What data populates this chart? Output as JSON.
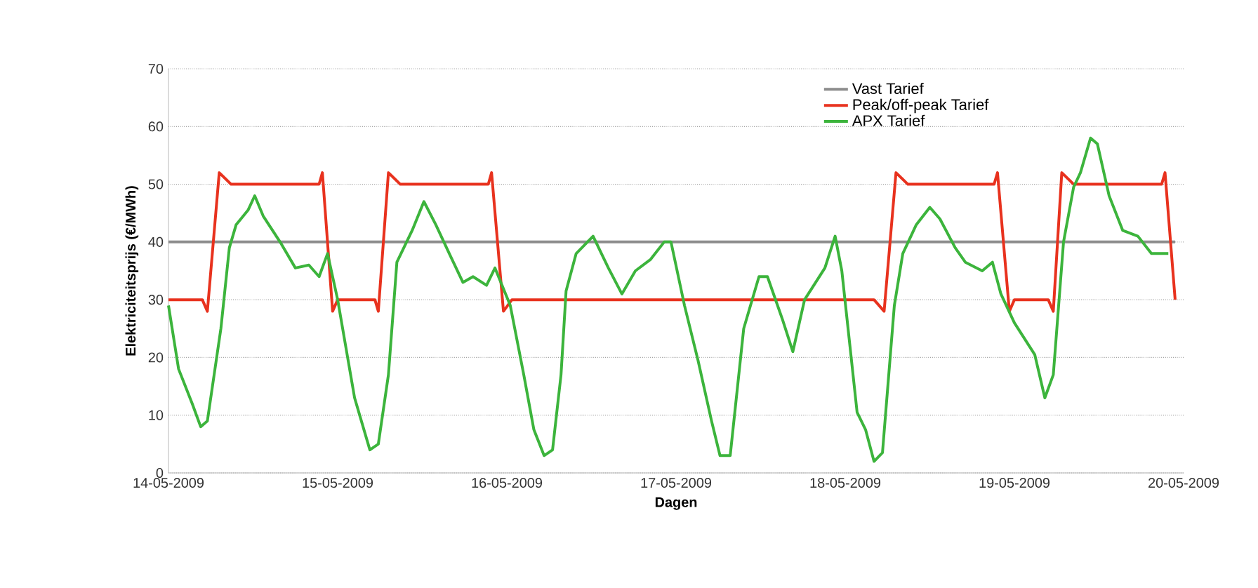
{
  "chart_data": {
    "type": "line",
    "xlabel": "Dagen",
    "ylabel": "Elektriciteitsprijs (€/MWh)",
    "xlim": [
      "2009-05-14",
      "2009-05-20"
    ],
    "ylim": [
      0,
      70
    ],
    "xticks": [
      {
        "value": "2009-05-14",
        "label": "14-05-2009"
      },
      {
        "value": "2009-05-15",
        "label": "15-05-2009"
      },
      {
        "value": "2009-05-16",
        "label": "16-05-2009"
      },
      {
        "value": "2009-05-17",
        "label": "17-05-2009"
      },
      {
        "value": "2009-05-18",
        "label": "18-05-2009"
      },
      {
        "value": "2009-05-19",
        "label": "19-05-2009"
      },
      {
        "value": "2009-05-20",
        "label": "20-05-2009"
      }
    ],
    "yticks": [
      0,
      10,
      20,
      30,
      40,
      50,
      60,
      70
    ],
    "grid": "y",
    "legend": "top right",
    "series": [
      {
        "name": "Vast Tarief",
        "color": "#8c8c8c",
        "x": [
          "2009-05-14T00:00",
          "2009-05-19T22:48"
        ],
        "values": [
          40,
          40
        ]
      },
      {
        "name": "Peak/off-peak Tarief",
        "color": "#e8321e",
        "x": [
          "2009-05-14T00:00",
          "2009-05-14T04:48",
          "2009-05-14T05:31",
          "2009-05-14T07:12",
          "2009-05-14T08:53",
          "2009-05-14T21:22",
          "2009-05-14T21:50",
          "2009-05-14T23:17",
          "2009-05-15T00:00",
          "2009-05-15T05:17",
          "2009-05-15T05:46",
          "2009-05-15T07:12",
          "2009-05-15T08:53",
          "2009-05-15T21:22",
          "2009-05-15T21:50",
          "2009-05-15T23:31",
          "2009-05-16T00:43",
          "2009-05-18T04:05",
          "2009-05-18T05:31",
          "2009-05-18T07:12",
          "2009-05-18T08:53",
          "2009-05-18T21:07",
          "2009-05-18T21:36",
          "2009-05-18T23:17",
          "2009-05-19T00:00",
          "2009-05-19T04:48",
          "2009-05-19T05:31",
          "2009-05-19T06:43",
          "2009-05-19T08:24",
          "2009-05-19T20:53",
          "2009-05-19T21:22",
          "2009-05-19T22:48"
        ],
        "values": [
          30,
          30,
          28,
          52,
          50,
          50,
          52,
          28,
          30,
          30,
          28,
          52,
          50,
          50,
          52,
          28,
          30,
          30,
          28,
          52,
          50,
          50,
          52,
          28,
          30,
          30,
          28,
          52,
          50,
          50,
          52,
          30
        ]
      },
      {
        "name": "APX Tarief",
        "color": "#3cb43c",
        "x": [
          "2009-05-14T00:00",
          "2009-05-14T01:26",
          "2009-05-14T03:22",
          "2009-05-14T04:34",
          "2009-05-14T05:31",
          "2009-05-14T07:26",
          "2009-05-14T08:38",
          "2009-05-14T09:36",
          "2009-05-14T11:17",
          "2009-05-14T12:14",
          "2009-05-14T13:26",
          "2009-05-14T15:50",
          "2009-05-14T18:00",
          "2009-05-14T19:55",
          "2009-05-14T21:22",
          "2009-05-14T22:34",
          "2009-05-15T00:00",
          "2009-05-15T02:24",
          "2009-05-15T04:34",
          "2009-05-15T05:46",
          "2009-05-15T07:12",
          "2009-05-15T08:24",
          "2009-05-15T10:34",
          "2009-05-15T12:14",
          "2009-05-15T13:55",
          "2009-05-15T15:50",
          "2009-05-15T17:46",
          "2009-05-15T19:12",
          "2009-05-15T21:07",
          "2009-05-15T22:19",
          "2009-05-16T00:29",
          "2009-05-16T02:24",
          "2009-05-16T03:50",
          "2009-05-16T05:17",
          "2009-05-16T06:29",
          "2009-05-16T07:41",
          "2009-05-16T08:24",
          "2009-05-16T09:50",
          "2009-05-16T12:14",
          "2009-05-16T14:24",
          "2009-05-16T16:19",
          "2009-05-16T18:14",
          "2009-05-16T20:24",
          "2009-05-16T22:19",
          "2009-05-16T23:17",
          "2009-05-17T01:12",
          "2009-05-17T03:07",
          "2009-05-17T05:02",
          "2009-05-17T06:14",
          "2009-05-17T07:41",
          "2009-05-17T09:36",
          "2009-05-17T11:46",
          "2009-05-17T12:58",
          "2009-05-17T15:07",
          "2009-05-17T16:34",
          "2009-05-17T18:14",
          "2009-05-17T21:07",
          "2009-05-17T22:34",
          "2009-05-17T23:31",
          "2009-05-18T01:41",
          "2009-05-18T02:53",
          "2009-05-18T04:05",
          "2009-05-18T05:17",
          "2009-05-18T06:58",
          "2009-05-18T08:10",
          "2009-05-18T10:05",
          "2009-05-18T12:00",
          "2009-05-18T13:26",
          "2009-05-18T15:36",
          "2009-05-18T17:02",
          "2009-05-18T19:26",
          "2009-05-18T20:53",
          "2009-05-18T22:05",
          "2009-05-19T00:00",
          "2009-05-19T02:53",
          "2009-05-19T04:19",
          "2009-05-19T05:31",
          "2009-05-19T06:58",
          "2009-05-19T08:24",
          "2009-05-19T09:22",
          "2009-05-19T10:48",
          "2009-05-19T11:46",
          "2009-05-19T13:26",
          "2009-05-19T15:22",
          "2009-05-19T17:31",
          "2009-05-19T19:26",
          "2009-05-19T21:50"
        ],
        "values": [
          29,
          18,
          12,
          8,
          9,
          25,
          39,
          43,
          45.5,
          48,
          44.5,
          40,
          35.5,
          36,
          34,
          38,
          30,
          13,
          4,
          5,
          17,
          36.5,
          42,
          47,
          43,
          38,
          33,
          34,
          32.5,
          35.5,
          29,
          17,
          7.5,
          3,
          4,
          17,
          31.5,
          38,
          41,
          35.5,
          31,
          35,
          37,
          40,
          40,
          29,
          19.5,
          9,
          3,
          3,
          25,
          34,
          34,
          26.5,
          21,
          30,
          35.5,
          41,
          35,
          10.5,
          7.5,
          2,
          3.5,
          29,
          38,
          43,
          46,
          44,
          39,
          36.5,
          35,
          36.5,
          31,
          26,
          20.5,
          13,
          17,
          40,
          49.5,
          52,
          58,
          57,
          48,
          42,
          41,
          38,
          38
        ]
      }
    ]
  }
}
